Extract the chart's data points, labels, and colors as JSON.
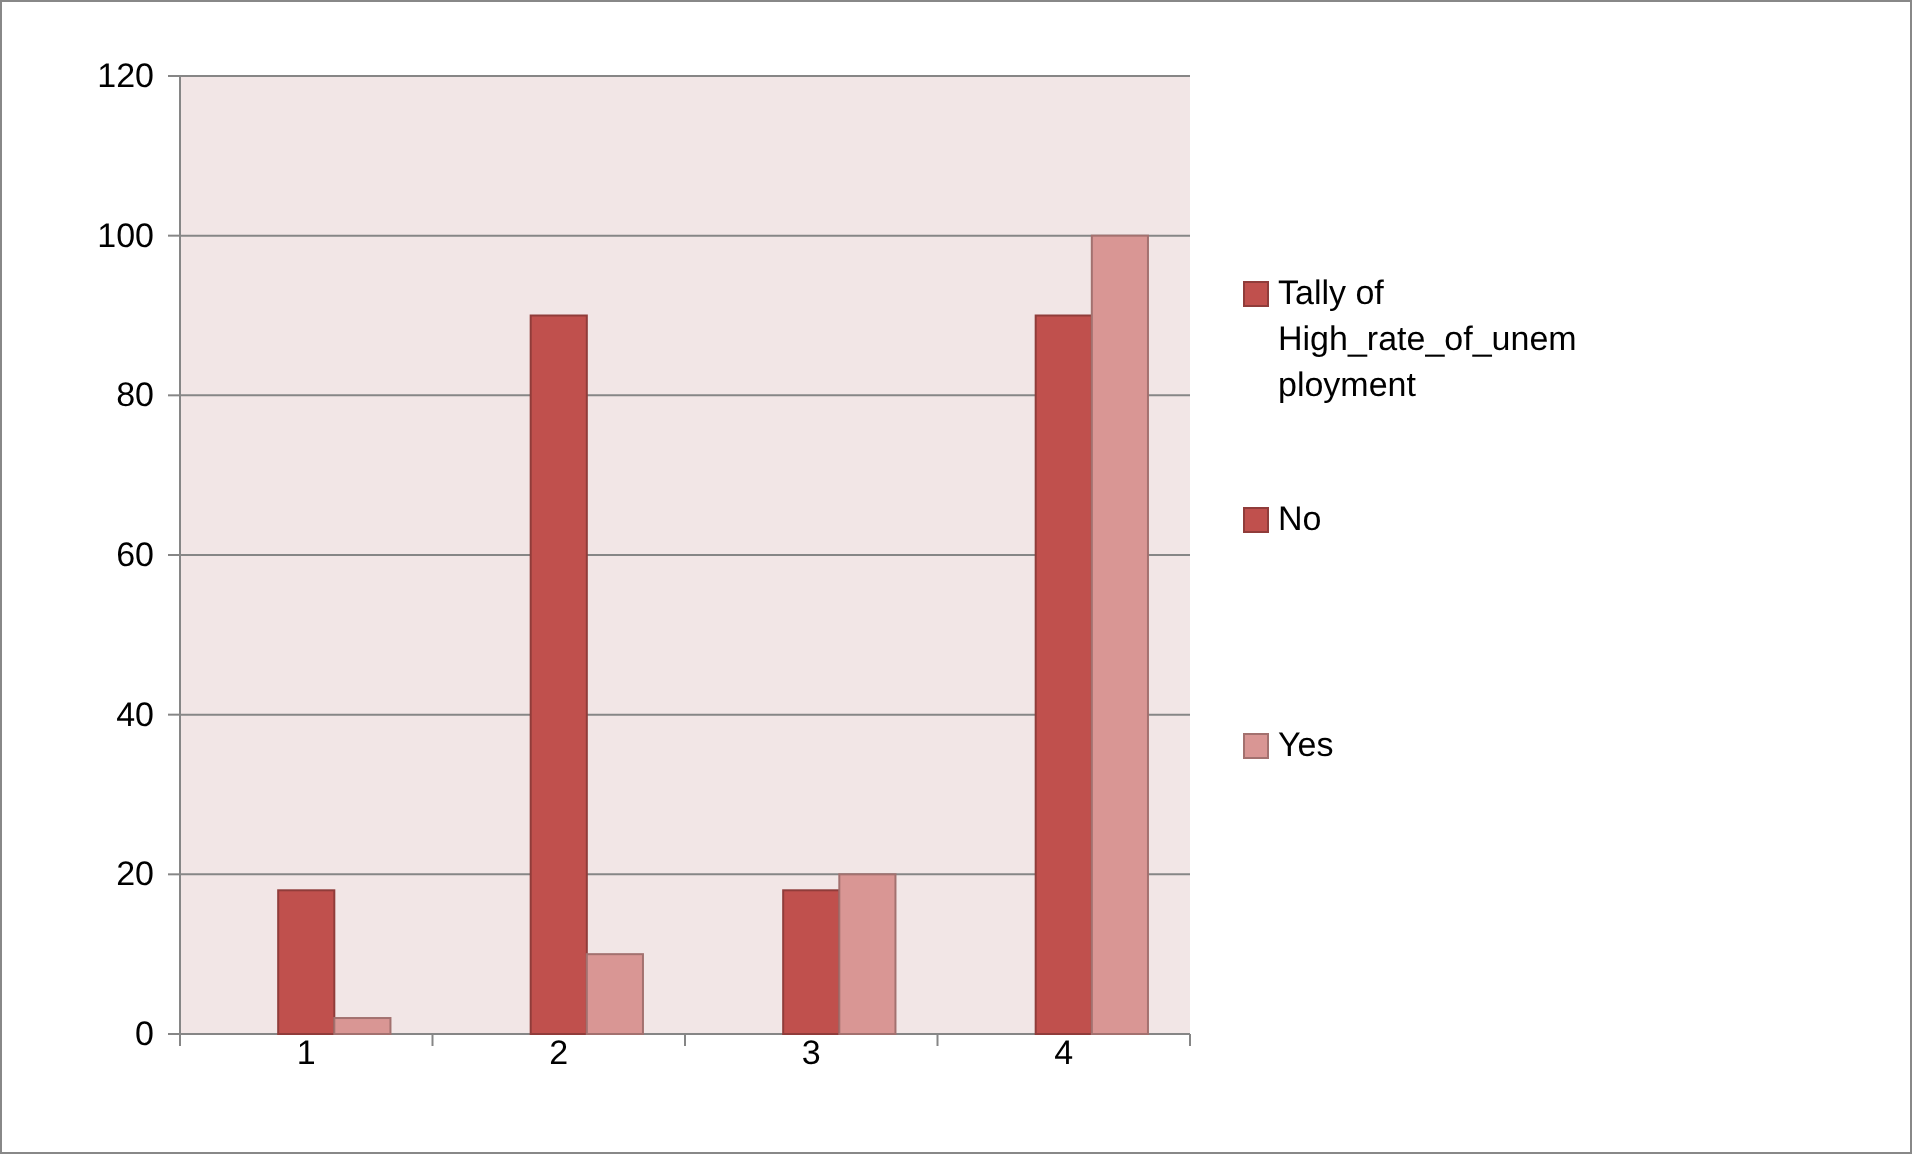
{
  "chart_data": {
    "type": "bar",
    "categories": [
      "1",
      "2",
      "3",
      "4"
    ],
    "series": [
      {
        "name": "Tally of High_rate_of_unemployment",
        "color": "#c0504d",
        "values": [
          null,
          null,
          null,
          null
        ]
      },
      {
        "name": "No",
        "color": "#c0504d",
        "values": [
          18,
          90,
          18,
          90
        ]
      },
      {
        "name": "Yes",
        "color": "#d99694",
        "values": [
          2,
          10,
          20,
          100
        ]
      }
    ],
    "ylim": [
      0,
      120
    ],
    "yticks": [
      0,
      20,
      40,
      60,
      80,
      100,
      120
    ],
    "grid": "y",
    "legend": "right"
  }
}
